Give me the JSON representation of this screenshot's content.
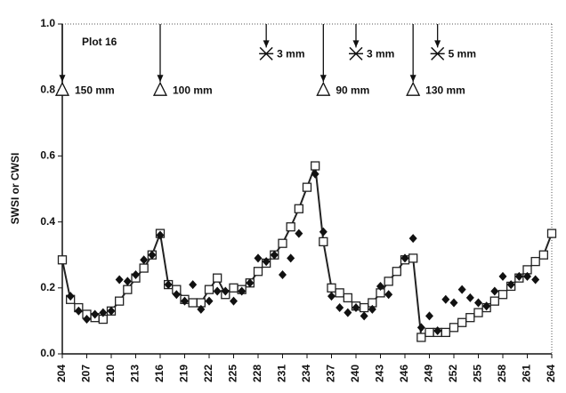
{
  "chart_data": {
    "type": "scatter-line",
    "y_label": "SWSI or CWSI",
    "annotation": "Plot 16",
    "xlim": [
      204,
      264
    ],
    "xticks": [
      204,
      207,
      210,
      213,
      216,
      219,
      222,
      225,
      228,
      231,
      234,
      237,
      240,
      243,
      246,
      249,
      252,
      255,
      258,
      261,
      264
    ],
    "ylim": [
      0,
      1
    ],
    "yticks": [
      {
        "value": 0,
        "label": "0.0"
      },
      0.2,
      0.4,
      0.6,
      0.8,
      {
        "value": 1,
        "label": "1.0"
      }
    ],
    "series": [
      {
        "color": "#222222",
        "marker": "square",
        "line": true,
        "x": [
          204,
          205,
          206,
          207,
          208,
          209,
          210,
          211,
          212,
          213,
          214,
          215,
          216,
          217,
          218,
          219,
          220,
          221,
          222,
          223,
          224,
          225,
          226,
          227,
          228,
          229,
          230,
          231,
          232,
          233,
          234,
          235,
          236,
          237,
          238,
          239,
          240,
          241,
          242,
          243,
          244,
          245,
          246,
          247,
          248,
          249,
          250,
          251,
          252,
          253,
          254,
          255,
          256,
          257,
          258,
          259,
          260,
          261,
          262,
          263,
          264
        ],
        "values": [
          0.285,
          0.165,
          0.14,
          0.12,
          0.11,
          0.105,
          0.13,
          0.16,
          0.195,
          0.23,
          0.26,
          0.3,
          0.365,
          0.21,
          0.195,
          0.165,
          0.155,
          0.155,
          0.195,
          0.23,
          0.18,
          0.2,
          0.195,
          0.215,
          0.25,
          0.275,
          0.3,
          0.335,
          0.385,
          0.44,
          0.505,
          0.57,
          0.34,
          0.2,
          0.185,
          0.17,
          0.145,
          0.14,
          0.155,
          0.185,
          0.22,
          0.25,
          0.285,
          0.29,
          0.05,
          0.065,
          0.065,
          0.065,
          0.08,
          0.095,
          0.11,
          0.125,
          0.14,
          0.16,
          0.18,
          0.205,
          0.23,
          0.255,
          0.28,
          0.3,
          0.365
        ]
      },
      {
        "color": "#111111",
        "marker": "diamond",
        "line": false,
        "x": [
          205,
          206,
          207,
          208,
          209,
          210,
          211,
          212,
          213,
          214,
          215,
          216,
          217,
          218,
          219,
          220,
          221,
          222,
          223,
          224,
          225,
          226,
          227,
          228,
          229,
          230,
          231,
          232,
          233,
          235,
          236,
          237,
          238,
          239,
          240,
          241,
          242,
          243,
          244,
          246,
          247,
          248,
          249,
          250,
          251,
          252,
          253,
          254,
          255,
          256,
          257,
          258,
          259,
          260,
          261,
          262
        ],
        "values": [
          0.175,
          0.13,
          0.105,
          0.12,
          0.125,
          0.13,
          0.225,
          0.22,
          0.24,
          0.285,
          0.3,
          0.36,
          0.21,
          0.18,
          0.16,
          0.21,
          0.135,
          0.16,
          0.19,
          0.19,
          0.16,
          0.19,
          0.215,
          0.29,
          0.28,
          0.3,
          0.24,
          0.29,
          0.365,
          0.545,
          0.37,
          0.175,
          0.14,
          0.125,
          0.14,
          0.115,
          0.135,
          0.205,
          0.18,
          0.29,
          0.35,
          0.08,
          0.115,
          0.07,
          0.165,
          0.155,
          0.195,
          0.17,
          0.155,
          0.145,
          0.19,
          0.235,
          0.21,
          0.235,
          0.235,
          0.225
        ]
      }
    ],
    "irrigation": [
      {
        "x": 204,
        "y": 0.8,
        "label": "150 mm"
      },
      {
        "x": 216,
        "y": 0.8,
        "label": "100 mm"
      },
      {
        "x": 236,
        "y": 0.8,
        "label": "90 mm"
      },
      {
        "x": 247,
        "y": 0.8,
        "label": "130 mm"
      }
    ],
    "rain": [
      {
        "x": 229,
        "y": 0.91,
        "label": "3 mm"
      },
      {
        "x": 240,
        "y": 0.91,
        "label": "3 mm"
      },
      {
        "x": 250,
        "y": 0.91,
        "label": "5 mm"
      }
    ]
  }
}
